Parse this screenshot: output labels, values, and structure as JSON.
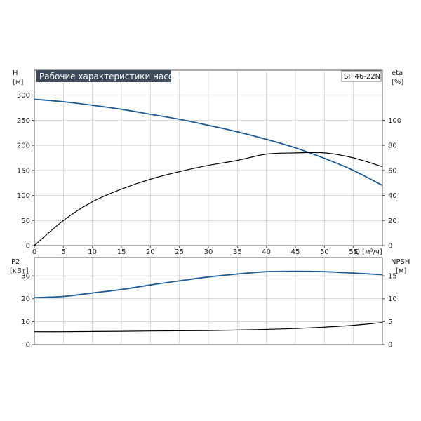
{
  "chart_data": [
    {
      "type": "line",
      "panel": "performance",
      "title": "Рабочие характеристики насоса",
      "tag": "SP 46-22N",
      "xlabel": "Q [м³/ч]",
      "x_ticks": [
        "0",
        "5",
        "10",
        "15",
        "20",
        "25",
        "30",
        "35",
        "40",
        "45",
        "50",
        "55"
      ],
      "xlim": [
        0,
        60
      ],
      "ylabel_left": [
        "H",
        "[м]"
      ],
      "y_ticks_left": [
        "0",
        "50",
        "100",
        "150",
        "200",
        "250",
        "300"
      ],
      "ylim_left": [
        0,
        350
      ],
      "ylabel_right": [
        "eta",
        "[%]"
      ],
      "y_ticks_right": [
        "0",
        "20",
        "40",
        "60",
        "80",
        "100"
      ],
      "ylim_right": [
        0,
        140
      ],
      "grid": true,
      "series": [
        {
          "axis": "left",
          "color": "#1f5b93",
          "x": [
            0,
            5,
            10,
            15,
            20,
            25,
            30,
            35,
            40,
            45,
            50,
            55,
            60
          ],
          "y": [
            292,
            287,
            280,
            272,
            262,
            252,
            240,
            227,
            212,
            195,
            174,
            150,
            120
          ]
        },
        {
          "axis": "right",
          "color": "#000000",
          "x": [
            0,
            5,
            10,
            15,
            20,
            25,
            30,
            35,
            40,
            45,
            50,
            55,
            60
          ],
          "y": [
            0,
            20,
            35,
            45,
            53,
            59,
            64,
            68,
            73,
            74,
            74,
            70,
            63
          ]
        }
      ]
    },
    {
      "type": "line",
      "panel": "power-npsh",
      "x_ticks": [],
      "xlim": [
        0,
        60
      ],
      "ylabel_left": [
        "P2",
        "[кВт]"
      ],
      "y_ticks_left": [
        "0",
        "10",
        "20",
        "30"
      ],
      "ylim_left": [
        0,
        38
      ],
      "ylabel_right": [
        "NPSH",
        "[м]"
      ],
      "y_ticks_right": [
        "0",
        "5",
        "10",
        "15"
      ],
      "ylim_right": [
        0,
        19
      ],
      "grid": true,
      "series": [
        {
          "axis": "left",
          "color": "#1f5b93",
          "x": [
            0,
            5,
            10,
            15,
            20,
            25,
            30,
            35,
            40,
            45,
            50,
            55,
            60
          ],
          "y": [
            20.5,
            21,
            22.5,
            24,
            26,
            27.8,
            29.5,
            30.8,
            31.8,
            32,
            31.8,
            31.2,
            30.5
          ]
        },
        {
          "axis": "right",
          "color": "#000000",
          "x": [
            0,
            5,
            10,
            15,
            20,
            25,
            30,
            35,
            40,
            45,
            50,
            55,
            60
          ],
          "y": [
            2.8,
            2.8,
            2.85,
            2.9,
            2.95,
            3.0,
            3.05,
            3.15,
            3.3,
            3.5,
            3.8,
            4.2,
            4.8
          ]
        }
      ]
    }
  ]
}
